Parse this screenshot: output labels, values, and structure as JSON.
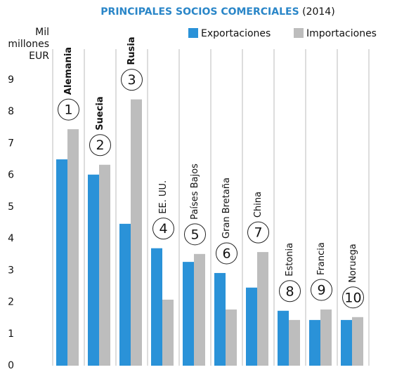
{
  "chart_data": {
    "type": "bar",
    "title": "PRINCIPALES SOCIOS COMERCIALES",
    "subtitle": "(2014)",
    "ylabel": [
      "Mil",
      "millones",
      "EUR"
    ],
    "categories": [
      "Alemania",
      "Suecia",
      "Rusia",
      "EE. UU.",
      "Países Bajos",
      "Gran Bretaña",
      "China",
      "Estonia",
      "Francia",
      "Noruega"
    ],
    "ranks": [
      "1",
      "2",
      "3",
      "4",
      "5",
      "6",
      "7",
      "8",
      "9",
      "10"
    ],
    "series": [
      {
        "name": "Exportaciones",
        "color": "#2a92d8",
        "values": [
          6.5,
          6.02,
          4.47,
          3.7,
          3.27,
          2.92,
          2.46,
          1.73,
          1.44,
          1.44
        ]
      },
      {
        "name": "Importaciones",
        "color": "#bdbdbd",
        "values": [
          7.45,
          6.33,
          8.39,
          2.08,
          3.52,
          1.77,
          3.58,
          1.44,
          1.77,
          1.53
        ]
      }
    ],
    "ylim": [
      0,
      9
    ],
    "yticks": [
      0,
      1,
      2,
      3,
      4,
      5,
      6,
      7,
      8,
      9
    ],
    "legend": "top-right"
  }
}
